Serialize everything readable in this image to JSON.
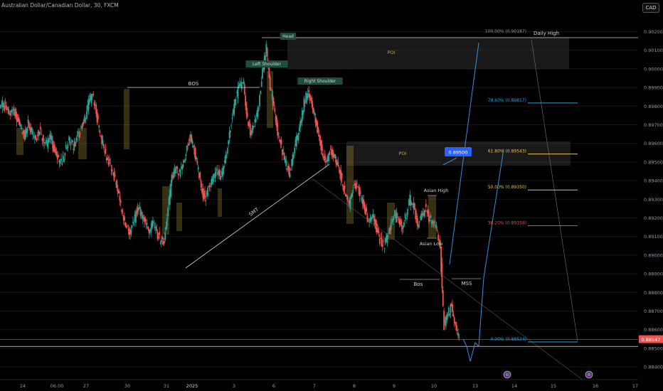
{
  "header": {
    "title": "Australian Dollar/Canadian Dollar, 30, FXCM",
    "currency": "CAD"
  },
  "chart_data": {
    "type": "candlestick",
    "ylim": [
      0.8835,
      0.9024
    ],
    "y_ticks": [
      "0.90200",
      "0.90100",
      "0.90000",
      "0.89900",
      "0.89800",
      "0.89700",
      "0.89600",
      "0.89500",
      "0.89400",
      "0.89300",
      "0.89200",
      "0.89100",
      "0.89000",
      "0.88900",
      "0.88800",
      "0.88700",
      "0.88600",
      "0.88500",
      "0.88400"
    ],
    "x_ticks": [
      "24",
      "06:00",
      "27",
      "30",
      "31",
      "2025",
      "3",
      "6",
      "7",
      "8",
      "9",
      "10",
      "13",
      "14",
      "15",
      "16",
      "17"
    ],
    "current_price": {
      "label": "0.88547",
      "value": 0.88547
    },
    "close_path": [
      0.8981,
      0.8979,
      0.8976,
      0.8979,
      0.8973,
      0.8968,
      0.8964,
      0.8971,
      0.8967,
      0.8963,
      0.8968,
      0.8962,
      0.8959,
      0.8964,
      0.8955,
      0.8952,
      0.8949,
      0.8958,
      0.8962,
      0.8958,
      0.8963,
      0.8968,
      0.8973,
      0.8982,
      0.8986,
      0.8976,
      0.8966,
      0.8957,
      0.8951,
      0.8946,
      0.894,
      0.8932,
      0.8921,
      0.8915,
      0.8912,
      0.8918,
      0.8925,
      0.8922,
      0.8918,
      0.8913,
      0.8918,
      0.8912,
      0.8908,
      0.8907,
      0.8925,
      0.8941,
      0.8946,
      0.8943,
      0.8948,
      0.8958,
      0.8963,
      0.8956,
      0.8945,
      0.8934,
      0.8931,
      0.8938,
      0.8942,
      0.8946,
      0.8941,
      0.895,
      0.8961,
      0.8975,
      0.8985,
      0.8991,
      0.8992,
      0.8972,
      0.8965,
      0.8971,
      0.898,
      0.8998,
      0.9011,
      0.899,
      0.8978,
      0.8966,
      0.8958,
      0.895,
      0.8944,
      0.8953,
      0.8962,
      0.897,
      0.8982,
      0.8988,
      0.8982,
      0.8972,
      0.8962,
      0.8953,
      0.895,
      0.8957,
      0.8954,
      0.8946,
      0.894,
      0.8932,
      0.8927,
      0.8936,
      0.8938,
      0.8931,
      0.8925,
      0.8918,
      0.8921,
      0.8915,
      0.8908,
      0.8905,
      0.891,
      0.8917,
      0.8922,
      0.8918,
      0.8915,
      0.8922,
      0.893,
      0.8926,
      0.8917,
      0.8922,
      0.8925,
      0.892,
      0.8918,
      0.8914,
      0.8904,
      0.8862,
      0.8869,
      0.8873,
      0.8862,
      0.8855
    ],
    "annotations": [
      {
        "text": "BOS"
      },
      {
        "text": "Left Shoulder"
      },
      {
        "text": "Head"
      },
      {
        "text": "Right Shoulder"
      },
      {
        "text": "POI"
      },
      {
        "text": "POI"
      },
      {
        "text": "SMT"
      },
      {
        "text": "Asian High"
      },
      {
        "text": "Asian Low"
      },
      {
        "text": "Bos"
      },
      {
        "text": "MSS"
      },
      {
        "text": "0.89500"
      }
    ],
    "fib_levels": [
      {
        "label": "100.00% (0.90187)",
        "value": 0.90187,
        "color": "#9598a1"
      },
      {
        "label": "78.60% (0.89817)",
        "value": 0.89817,
        "color": "#2ea3d9"
      },
      {
        "label": "61.80% (0.89543)",
        "value": 0.89543,
        "color": "#e0c35f"
      },
      {
        "label": "50.00% (0.89350)",
        "value": 0.8935,
        "color": "#e0c35f"
      },
      {
        "label": "38.20% (0.89158)",
        "value": 0.89158,
        "color": "#e84a4a"
      },
      {
        "label": "0.00% (0.88534)",
        "value": 0.88534,
        "color": "#2ea3d9"
      }
    ],
    "daily_high_label": "Daily High",
    "projection_path": [
      0.8855,
      0.8851,
      0.8843,
      0.8853,
      0.8851,
      0.8888,
      0.8957
    ],
    "projection_path_2": [
      0.8895,
      0.8948,
      0.9014
    ],
    "colors": {
      "up": "#26a69a",
      "down": "#ef5350",
      "projection": "#3d8fd6",
      "grid": "#151515"
    }
  }
}
